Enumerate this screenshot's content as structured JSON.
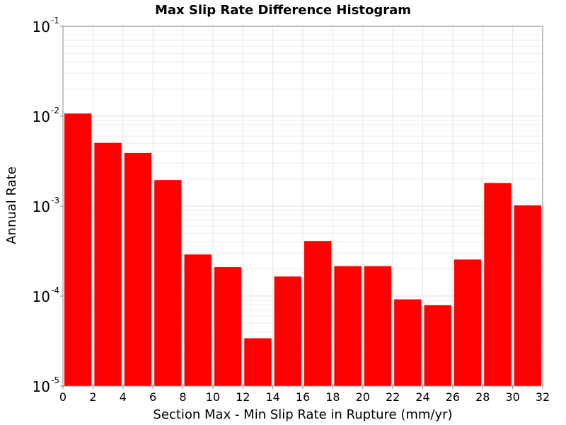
{
  "chart_data": {
    "type": "bar",
    "title": "Max Slip Rate Difference Histogram",
    "xlabel": "Section Max - Min Slip Rate in Rupture (mm/yr)",
    "ylabel": "Annual Rate",
    "xlim": [
      0,
      32
    ],
    "ylim": [
      1e-05,
      0.1
    ],
    "yscale": "log",
    "grid": true,
    "bar_color": "#ff0000",
    "bin_width": 2,
    "x_ticks": [
      "0",
      "2",
      "4",
      "6",
      "8",
      "10",
      "12",
      "14",
      "16",
      "18",
      "20",
      "22",
      "24",
      "26",
      "28",
      "30",
      "32"
    ],
    "y_ticks": [
      {
        "value": 0.1,
        "base": "10",
        "exp": "-1"
      },
      {
        "value": 0.01,
        "base": "10",
        "exp": "-2"
      },
      {
        "value": 0.001,
        "base": "10",
        "exp": "-3"
      },
      {
        "value": 0.0001,
        "base": "10",
        "exp": "-4"
      },
      {
        "value": 1e-05,
        "base": "10",
        "exp": "-5"
      }
    ],
    "bins": [
      {
        "x0": 0,
        "x1": 2,
        "value": 0.0107
      },
      {
        "x0": 2,
        "x1": 4,
        "value": 0.00505
      },
      {
        "x0": 4,
        "x1": 6,
        "value": 0.0039
      },
      {
        "x0": 6,
        "x1": 8,
        "value": 0.00195
      },
      {
        "x0": 8,
        "x1": 10,
        "value": 0.00029
      },
      {
        "x0": 10,
        "x1": 12,
        "value": 0.00021
      },
      {
        "x0": 12,
        "x1": 14,
        "value": 3.4e-05
      },
      {
        "x0": 14,
        "x1": 16,
        "value": 0.000165
      },
      {
        "x0": 16,
        "x1": 18,
        "value": 0.00041
      },
      {
        "x0": 18,
        "x1": 20,
        "value": 0.000215
      },
      {
        "x0": 20,
        "x1": 22,
        "value": 0.000215
      },
      {
        "x0": 22,
        "x1": 24,
        "value": 9.2e-05
      },
      {
        "x0": 24,
        "x1": 26,
        "value": 7.9e-05
      },
      {
        "x0": 26,
        "x1": 28,
        "value": 0.000255
      },
      {
        "x0": 28,
        "x1": 30,
        "value": 0.00181
      },
      {
        "x0": 30,
        "x1": 32,
        "value": 0.00102
      }
    ]
  }
}
